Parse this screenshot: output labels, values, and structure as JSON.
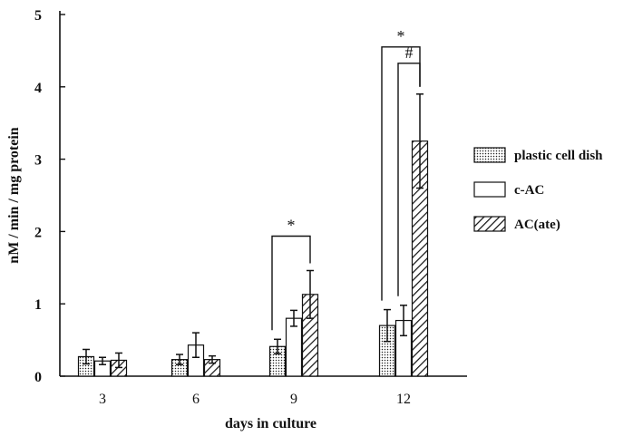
{
  "chart_data": {
    "type": "bar",
    "xlabel": "days in culture",
    "ylabel": "nM / min / mg protein",
    "ylim": [
      0,
      5
    ],
    "yticks": [
      "0",
      "1",
      "2",
      "3",
      "4",
      "5"
    ],
    "categories": [
      "3",
      "6",
      "9",
      "12"
    ],
    "series": [
      {
        "name": "plastic cell dish",
        "pattern": "dotted",
        "values": [
          0.27,
          0.23,
          0.41,
          0.7
        ],
        "errors": [
          0.1,
          0.07,
          0.1,
          0.22
        ]
      },
      {
        "name": "c-AC",
        "pattern": "open",
        "values": [
          0.21,
          0.43,
          0.8,
          0.77
        ],
        "errors": [
          0.05,
          0.17,
          0.11,
          0.21
        ]
      },
      {
        "name": "AC(ate)",
        "pattern": "hatched",
        "values": [
          0.22,
          0.23,
          1.13,
          3.25
        ],
        "errors": [
          0.1,
          0.05,
          0.33,
          0.65
        ]
      }
    ],
    "legend_position": "right",
    "annotations": [
      {
        "label": "*",
        "category": "9",
        "from_series": 0,
        "to_series": 2
      },
      {
        "label": "*",
        "category": "12",
        "from_series": 0,
        "to_series": 2
      },
      {
        "label": "#",
        "category": "12",
        "from_series": 1,
        "to_series": 2
      }
    ]
  }
}
